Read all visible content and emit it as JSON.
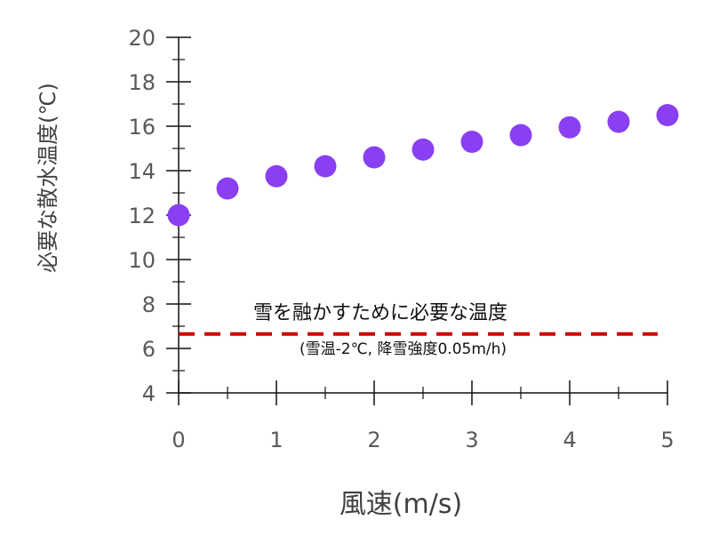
{
  "chart_data": {
    "type": "scatter",
    "title": "",
    "xlabel": "風速(m/s)",
    "ylabel": "必要な散水温度(℃)",
    "xlim": [
      0,
      5
    ],
    "ylim": [
      4,
      20
    ],
    "x_ticks": [
      0,
      1,
      2,
      3,
      4,
      5
    ],
    "y_ticks": [
      4,
      6,
      8,
      10,
      12,
      14,
      16,
      18,
      20
    ],
    "grid": false,
    "series": [
      {
        "color": "#8a3ff2",
        "x": [
          0,
          0.5,
          1,
          1.5,
          2,
          2.5,
          3,
          3.5,
          4,
          4.5,
          5
        ],
        "y": [
          12.0,
          13.2,
          13.75,
          14.2,
          14.6,
          14.95,
          15.3,
          15.6,
          15.95,
          16.2,
          16.5
        ]
      }
    ],
    "reference_line": {
      "y": 6.65,
      "x_range": [
        0,
        4.9
      ],
      "style": "dashed",
      "color": "#cc0000",
      "label": "雪を融かすために必要な温度",
      "sublabel": "(雪温-2℃, 降雪強度0.05m/h)"
    }
  }
}
